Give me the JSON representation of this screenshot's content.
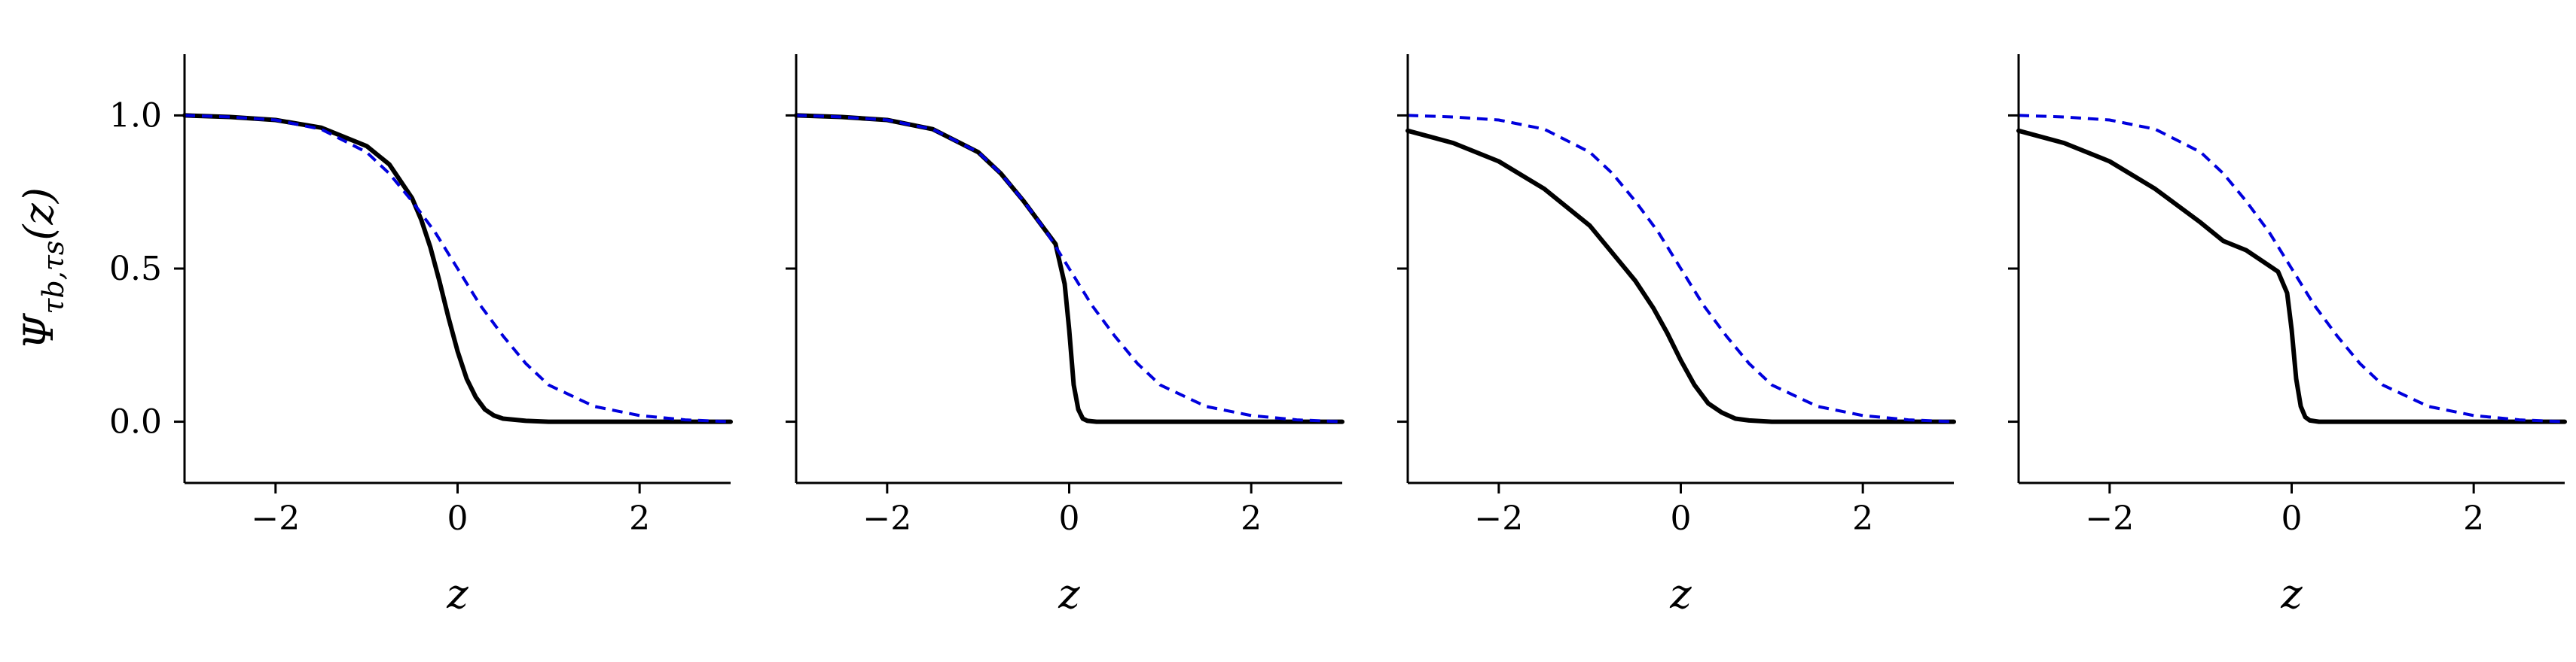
{
  "chart_data": [
    {
      "type": "line",
      "xlabel": "z",
      "ylabel": "Ψ_{τ_b,τ_s}(z)",
      "xlim": [
        -3,
        3
      ],
      "ylim": [
        -0.2,
        1.2
      ],
      "xticks": [
        "−2",
        "0",
        "2"
      ],
      "xtick_values": [
        -2,
        0,
        2
      ],
      "yticks": [
        "0.0",
        "0.5",
        "1.0"
      ],
      "ytick_values": [
        0,
        0.5,
        1
      ],
      "grid": false,
      "series": [
        {
          "style": "solid",
          "color": "#000000",
          "x": [
            -3,
            -2.5,
            -2,
            -1.5,
            -1,
            -0.75,
            -0.5,
            -0.4,
            -0.3,
            -0.2,
            -0.1,
            0,
            0.1,
            0.2,
            0.3,
            0.4,
            0.5,
            0.75,
            1,
            2,
            3
          ],
          "y": [
            1.0,
            0.995,
            0.985,
            0.96,
            0.9,
            0.84,
            0.73,
            0.66,
            0.57,
            0.46,
            0.34,
            0.23,
            0.14,
            0.08,
            0.04,
            0.02,
            0.01,
            0.003,
            0.0,
            0.0,
            0.0
          ]
        },
        {
          "style": "dashed",
          "color": "#0000dd",
          "x": [
            -3,
            -2.5,
            -2,
            -1.5,
            -1,
            -0.75,
            -0.5,
            -0.25,
            0,
            0.25,
            0.5,
            0.75,
            1,
            1.5,
            2,
            2.5,
            3
          ],
          "y": [
            1.0,
            0.995,
            0.985,
            0.955,
            0.88,
            0.81,
            0.72,
            0.62,
            0.5,
            0.38,
            0.28,
            0.19,
            0.12,
            0.05,
            0.02,
            0.006,
            0.0
          ]
        }
      ]
    },
    {
      "type": "line",
      "xlabel": "z",
      "xlim": [
        -3,
        3
      ],
      "ylim": [
        -0.2,
        1.2
      ],
      "xticks": [
        "−2",
        "0",
        "2"
      ],
      "xtick_values": [
        -2,
        0,
        2
      ],
      "yticks": [
        "",
        "",
        ""
      ],
      "ytick_values": [
        0,
        0.5,
        1
      ],
      "grid": false,
      "series": [
        {
          "style": "solid",
          "color": "#000000",
          "x": [
            -3,
            -2.5,
            -2,
            -1.5,
            -1,
            -0.75,
            -0.5,
            -0.3,
            -0.15,
            -0.05,
            0,
            0.05,
            0.1,
            0.15,
            0.2,
            0.3,
            0.5,
            1,
            2,
            3
          ],
          "y": [
            1.0,
            0.995,
            0.985,
            0.955,
            0.88,
            0.81,
            0.72,
            0.64,
            0.58,
            0.45,
            0.3,
            0.12,
            0.04,
            0.01,
            0.003,
            0.0,
            0.0,
            0.0,
            0.0,
            0.0
          ]
        },
        {
          "style": "dashed",
          "color": "#0000dd",
          "x": [
            -3,
            -2.5,
            -2,
            -1.5,
            -1,
            -0.75,
            -0.5,
            -0.25,
            0,
            0.25,
            0.5,
            0.75,
            1,
            1.5,
            2,
            2.5,
            3
          ],
          "y": [
            1.0,
            0.995,
            0.985,
            0.955,
            0.88,
            0.81,
            0.72,
            0.62,
            0.5,
            0.38,
            0.28,
            0.19,
            0.12,
            0.05,
            0.02,
            0.006,
            0.0
          ]
        }
      ]
    },
    {
      "type": "line",
      "xlabel": "z",
      "xlim": [
        -3,
        3
      ],
      "ylim": [
        -0.2,
        1.2
      ],
      "xticks": [
        "−2",
        "0",
        "2"
      ],
      "xtick_values": [
        -2,
        0,
        2
      ],
      "yticks": [
        "",
        "",
        ""
      ],
      "ytick_values": [
        0,
        0.5,
        1
      ],
      "grid": false,
      "series": [
        {
          "style": "solid",
          "color": "#000000",
          "x": [
            -3,
            -2.5,
            -2,
            -1.5,
            -1,
            -0.75,
            -0.5,
            -0.3,
            -0.15,
            0,
            0.15,
            0.3,
            0.45,
            0.6,
            0.75,
            1,
            1.5,
            2,
            3
          ],
          "y": [
            0.95,
            0.91,
            0.85,
            0.76,
            0.64,
            0.55,
            0.46,
            0.37,
            0.29,
            0.2,
            0.12,
            0.06,
            0.03,
            0.01,
            0.004,
            0.0,
            0.0,
            0.0,
            0.0
          ]
        },
        {
          "style": "dashed",
          "color": "#0000dd",
          "x": [
            -3,
            -2.5,
            -2,
            -1.5,
            -1,
            -0.75,
            -0.5,
            -0.25,
            0,
            0.25,
            0.5,
            0.75,
            1,
            1.5,
            2,
            2.5,
            3
          ],
          "y": [
            1.0,
            0.995,
            0.985,
            0.955,
            0.88,
            0.81,
            0.72,
            0.62,
            0.5,
            0.38,
            0.28,
            0.19,
            0.12,
            0.05,
            0.02,
            0.006,
            0.0
          ]
        }
      ]
    },
    {
      "type": "line",
      "xlabel": "z",
      "xlim": [
        -3,
        3
      ],
      "ylim": [
        -0.2,
        1.2
      ],
      "xticks": [
        "−2",
        "0",
        "2"
      ],
      "xtick_values": [
        -2,
        0,
        2
      ],
      "yticks": [
        "",
        "",
        ""
      ],
      "ytick_values": [
        0,
        0.5,
        1
      ],
      "grid": false,
      "series": [
        {
          "style": "solid",
          "color": "#000000",
          "x": [
            -3,
            -2.5,
            -2,
            -1.5,
            -1,
            -0.75,
            -0.5,
            -0.3,
            -0.15,
            -0.05,
            0,
            0.05,
            0.1,
            0.15,
            0.2,
            0.3,
            0.5,
            1,
            2,
            3
          ],
          "y": [
            0.95,
            0.91,
            0.85,
            0.76,
            0.65,
            0.59,
            0.56,
            0.52,
            0.49,
            0.42,
            0.3,
            0.14,
            0.05,
            0.015,
            0.004,
            0.0,
            0.0,
            0.0,
            0.0,
            0.0
          ]
        },
        {
          "style": "dashed",
          "color": "#0000dd",
          "x": [
            -3,
            -2.5,
            -2,
            -1.5,
            -1,
            -0.75,
            -0.5,
            -0.25,
            0,
            0.25,
            0.5,
            0.75,
            1,
            1.5,
            2,
            2.5,
            3
          ],
          "y": [
            1.0,
            0.995,
            0.985,
            0.955,
            0.88,
            0.81,
            0.72,
            0.62,
            0.5,
            0.38,
            0.28,
            0.19,
            0.12,
            0.05,
            0.02,
            0.006,
            0.0
          ]
        }
      ]
    }
  ]
}
